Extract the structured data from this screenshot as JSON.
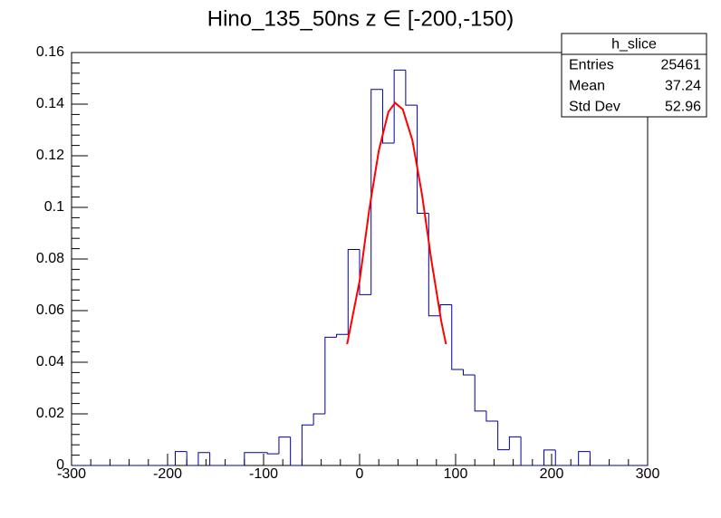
{
  "chart_data": {
    "type": "histogram",
    "title": "Hino_135_50ns z  ∈ [-200,-150)",
    "bins": [
      -300,
      -288,
      -276,
      -264,
      -252,
      -240,
      -228,
      -216,
      -204,
      -192,
      -180,
      -168,
      -156,
      -144,
      -132,
      -120,
      -108,
      -96,
      -84,
      -72,
      -60,
      -48,
      -36,
      -24,
      -12,
      0,
      12,
      24,
      36,
      48,
      60,
      72,
      84,
      96,
      108,
      120,
      132,
      144,
      156,
      168,
      180,
      192,
      204,
      216,
      228,
      240,
      252,
      264,
      276,
      288,
      300
    ],
    "values": [
      0,
      0,
      0,
      0,
      0,
      0,
      0,
      0,
      0,
      0.0054,
      0,
      0.005,
      0,
      0,
      0,
      0.005,
      0.005,
      0.0045,
      0.011,
      0,
      0.0157,
      0.02,
      0.0497,
      0.0508,
      0.0837,
      0.0662,
      0.1457,
      0.1249,
      0.1532,
      0.1396,
      0.0977,
      0.058,
      0.0623,
      0.0372,
      0.0351,
      0.0211,
      0.0172,
      0.0061,
      0.0111,
      0,
      0,
      0.006,
      0,
      0,
      0.0054,
      0,
      0,
      0,
      0,
      0
    ],
    "color": "#000099",
    "fit": {
      "x": [
        -13,
        0,
        10,
        20,
        30,
        37,
        45,
        55,
        65,
        75,
        85,
        90
      ],
      "values": [
        0.047,
        0.0715,
        0.099,
        0.122,
        0.137,
        0.1405,
        0.138,
        0.126,
        0.105,
        0.079,
        0.056,
        0.047
      ],
      "color": "#ff0000"
    },
    "xlim": [
      -300,
      300
    ],
    "xticks": [
      -300,
      -200,
      -100,
      0,
      100,
      200,
      300
    ],
    "ylim": [
      0,
      0.16
    ],
    "yticks": [
      0,
      0.02,
      0.04,
      0.06,
      0.08,
      0.1,
      0.12,
      0.14,
      0.16
    ],
    "stats": {
      "title": "h_slice",
      "rows": [
        [
          "Entries",
          "25461"
        ],
        [
          "Mean",
          "37.24"
        ],
        [
          "Std Dev",
          "52.96"
        ]
      ]
    }
  }
}
